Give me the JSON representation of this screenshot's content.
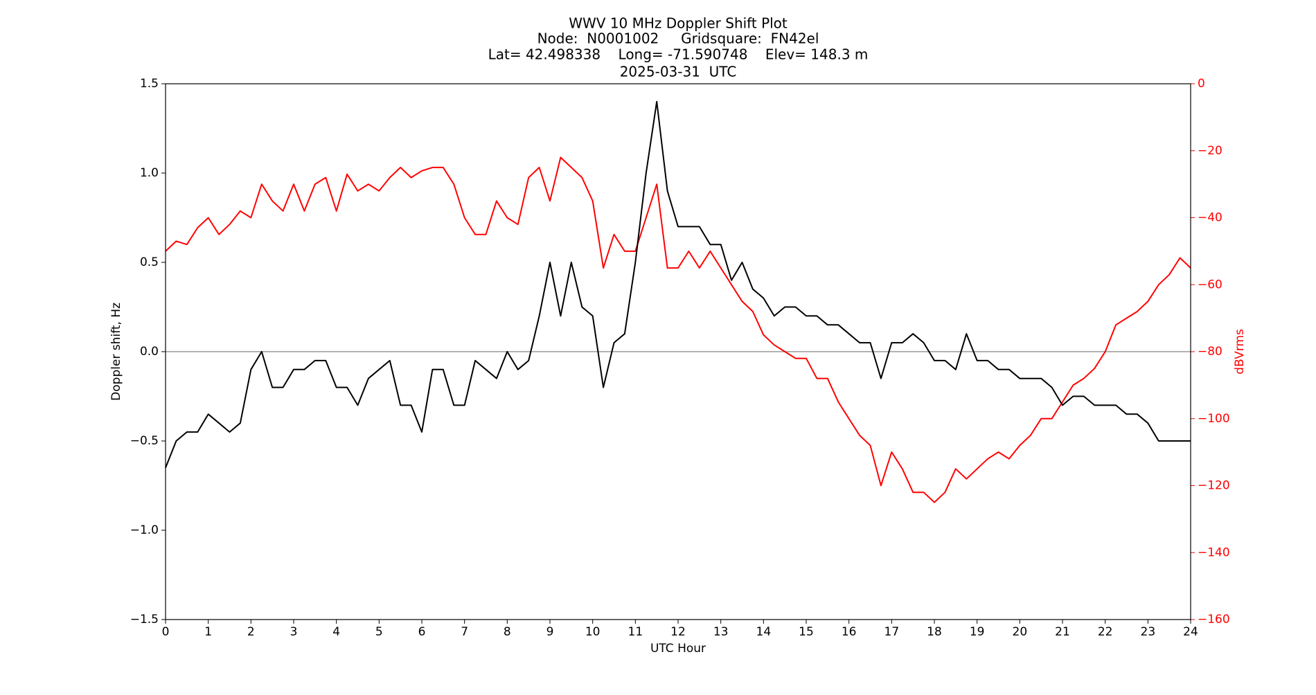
{
  "chart_data": {
    "type": "line",
    "title_lines": [
      "WWV 10 MHz Doppler Shift Plot",
      "Node:  N0001002     Gridsquare:  FN42el",
      "Lat= 42.498338    Long= -71.590748    Elev= 148.3 m",
      "2025-03-31  UTC"
    ],
    "xlabel": "UTC Hour",
    "ylabel": "Doppler shift, Hz",
    "y2label": "dBVrms",
    "y2color": "#ff0000",
    "xlim": [
      0,
      24
    ],
    "xticks": [
      0,
      1,
      2,
      3,
      4,
      5,
      6,
      7,
      8,
      9,
      10,
      11,
      12,
      13,
      14,
      15,
      16,
      17,
      18,
      19,
      20,
      21,
      22,
      23,
      24
    ],
    "ylim": [
      -1.5,
      1.5
    ],
    "yticks": [
      {
        "value": -1.5,
        "label": "−1.5"
      },
      {
        "value": -1.0,
        "label": "−1.0"
      },
      {
        "value": -0.5,
        "label": "−0.5"
      },
      {
        "value": 0,
        "label": "0.0"
      },
      0.5,
      {
        "value": 1.0,
        "label": "1.0"
      },
      1.5
    ],
    "y2lim": [
      -160,
      0
    ],
    "y2ticks": [
      {
        "value": -160,
        "label": "−160"
      },
      {
        "value": -140,
        "label": "−140"
      },
      {
        "value": -120,
        "label": "−120"
      },
      {
        "value": -100,
        "label": "−100"
      },
      {
        "value": -80,
        "label": "−80"
      },
      {
        "value": -60,
        "label": "−60"
      },
      {
        "value": -40,
        "label": "−40"
      },
      {
        "value": -20,
        "label": "−20"
      },
      0
    ],
    "hline": 0,
    "hline_color": "#999999",
    "x": [
      0,
      0.25,
      0.5,
      0.75,
      1,
      1.25,
      1.5,
      1.75,
      2,
      2.25,
      2.5,
      2.75,
      3,
      3.25,
      3.5,
      3.75,
      4,
      4.25,
      4.5,
      4.75,
      5,
      5.25,
      5.5,
      5.75,
      6,
      6.25,
      6.5,
      6.75,
      7,
      7.25,
      7.5,
      7.75,
      8,
      8.25,
      8.5,
      8.75,
      9,
      9.25,
      9.5,
      9.75,
      10,
      10.25,
      10.5,
      10.75,
      11,
      11.25,
      11.5,
      11.75,
      12,
      12.25,
      12.5,
      12.75,
      13,
      13.25,
      13.5,
      13.75,
      14,
      14.25,
      14.5,
      14.75,
      15,
      15.25,
      15.5,
      15.75,
      16,
      16.25,
      16.5,
      16.75,
      17,
      17.25,
      17.5,
      17.75,
      18,
      18.25,
      18.5,
      18.75,
      19,
      19.25,
      19.5,
      19.75,
      20,
      20.25,
      20.5,
      20.75,
      21,
      21.25,
      21.5,
      21.75,
      22,
      22.25,
      22.5,
      22.75,
      23,
      23.25,
      23.5,
      23.75,
      24
    ],
    "series": [
      {
        "color": "#000000",
        "values": [
          -0.65,
          -0.5,
          -0.45,
          -0.45,
          -0.35,
          -0.4,
          -0.45,
          -0.4,
          -0.1,
          0.0,
          -0.2,
          -0.2,
          -0.1,
          -0.1,
          -0.05,
          -0.05,
          -0.2,
          -0.2,
          -0.3,
          -0.15,
          -0.1,
          -0.05,
          -0.3,
          -0.3,
          -0.45,
          -0.1,
          -0.1,
          -0.3,
          -0.3,
          -0.05,
          -0.1,
          -0.15,
          0.0,
          -0.1,
          -0.05,
          0.2,
          0.5,
          0.2,
          0.5,
          0.25,
          0.2,
          -0.2,
          0.05,
          0.1,
          0.5,
          1.0,
          1.4,
          0.9,
          0.7,
          0.7,
          0.7,
          0.6,
          0.6,
          0.4,
          0.5,
          0.35,
          0.3,
          0.2,
          0.25,
          0.25,
          0.2,
          0.2,
          0.15,
          0.15,
          0.1,
          0.05,
          0.05,
          -0.15,
          0.05,
          0.05,
          0.1,
          0.05,
          -0.05,
          -0.05,
          -0.1,
          0.1,
          -0.05,
          -0.05,
          -0.1,
          -0.1,
          -0.15,
          -0.15,
          -0.15,
          -0.2,
          -0.3,
          -0.25,
          -0.25,
          -0.3,
          -0.3,
          -0.3,
          -0.35,
          -0.35,
          -0.4,
          -0.5,
          -0.5,
          -0.5,
          -0.5
        ]
      },
      {
        "color": "#ff0000",
        "axis": "y2",
        "values": [
          -50,
          -47,
          -48,
          -43,
          -40,
          -45,
          -42,
          -38,
          -40,
          -30,
          -35,
          -38,
          -30,
          -38,
          -30,
          -28,
          -38,
          -27,
          -32,
          -30,
          -32,
          -28,
          -25,
          -28,
          -26,
          -25,
          -25,
          -30,
          -40,
          -45,
          -45,
          -35,
          -40,
          -42,
          -28,
          -25,
          -35,
          -22,
          -25,
          -28,
          -35,
          -55,
          -45,
          -50,
          -50,
          -40,
          -30,
          -55,
          -55,
          -50,
          -55,
          -50,
          -55,
          -60,
          -65,
          -68,
          -75,
          -78,
          -80,
          -82,
          -82,
          -88,
          -88,
          -95,
          -100,
          -105,
          -108,
          -120,
          -110,
          -115,
          -122,
          -122,
          -125,
          -122,
          -115,
          -118,
          -115,
          -112,
          -110,
          -112,
          -108,
          -105,
          -100,
          -100,
          -95,
          -90,
          -88,
          -85,
          -80,
          -72,
          -70,
          -68,
          -65,
          -60,
          -57,
          -52,
          -55
        ]
      }
    ]
  }
}
